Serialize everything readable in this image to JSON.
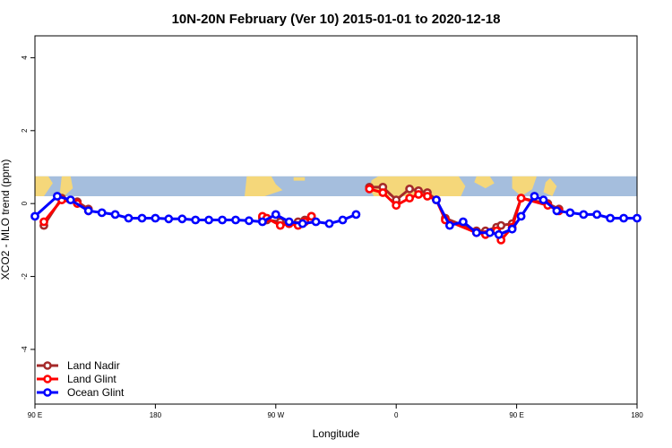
{
  "chart_data": {
    "type": "line",
    "title": "10N-20N February (Ver 10)   2015-01-01 to 2020-12-18",
    "xlabel": "Longitude",
    "ylabel": "XCO2 - MLO trend (ppm)",
    "xlim": [
      -90,
      180
    ],
    "ylim": [
      -5.5,
      4.6
    ],
    "xticks": [
      {
        "value": -90,
        "label": "90 E"
      },
      {
        "value": -36,
        "label": "180"
      },
      {
        "value": 18,
        "label": "90 W"
      },
      {
        "value": 72,
        "label": "0"
      },
      {
        "value": 126,
        "label": "90 E"
      },
      {
        "value": 180,
        "label": "180"
      }
    ],
    "yticks": [
      -4,
      -2,
      0,
      2,
      4
    ],
    "map_band": {
      "ymin": 0.2,
      "ymax": 0.75,
      "ocean_color": "#a5bedd",
      "land_color": "#f5d77a"
    },
    "grid": false,
    "legend_position": "bottom-left",
    "series": [
      {
        "name": "Land Nadir",
        "color": "#a52a2a",
        "x": [
          -86,
          -78,
          -71,
          -66,
          12,
          14,
          20,
          24,
          28,
          31,
          34,
          60,
          66,
          72,
          78,
          82,
          86,
          90,
          94,
          108,
          112,
          117,
          119,
          124,
          128,
          140,
          145
        ],
        "y": [
          -0.6,
          0.15,
          0.05,
          -0.15,
          -0.4,
          -0.45,
          -0.5,
          -0.55,
          -0.5,
          -0.45,
          -0.35,
          0.45,
          0.45,
          0.1,
          0.4,
          0.35,
          0.3,
          0.1,
          -0.4,
          -0.75,
          -0.75,
          -0.65,
          -0.6,
          -0.55,
          0.15,
          0.0,
          -0.15
        ]
      },
      {
        "name": "Land Glint",
        "color": "#ff0000",
        "x": [
          -86,
          -78,
          -71,
          -66,
          12,
          14,
          20,
          24,
          28,
          31,
          34,
          60,
          66,
          72,
          78,
          82,
          86,
          90,
          94,
          108,
          112,
          117,
          119,
          124,
          128,
          140,
          145
        ],
        "y": [
          -0.5,
          0.1,
          0.0,
          -0.2,
          -0.35,
          -0.4,
          -0.6,
          -0.55,
          -0.6,
          -0.5,
          -0.35,
          0.4,
          0.3,
          -0.05,
          0.15,
          0.25,
          0.2,
          0.1,
          -0.45,
          -0.8,
          -0.85,
          -0.75,
          -1.0,
          -0.65,
          0.15,
          -0.05,
          -0.2
        ]
      },
      {
        "name": "Ocean Glint",
        "color": "#0000ff",
        "x": [
          -90,
          -80,
          -74,
          -66,
          -60,
          -54,
          -48,
          -42,
          -36,
          -30,
          -24,
          -18,
          -12,
          -6,
          0,
          6,
          12,
          18,
          24,
          30,
          36,
          42,
          48,
          54,
          90,
          96,
          102,
          108,
          114,
          118,
          124,
          128,
          134,
          138,
          144,
          150,
          156,
          162,
          168,
          174,
          180
        ],
        "y": [
          -0.35,
          0.2,
          0.1,
          -0.2,
          -0.25,
          -0.3,
          -0.4,
          -0.4,
          -0.4,
          -0.42,
          -0.42,
          -0.45,
          -0.45,
          -0.45,
          -0.45,
          -0.47,
          -0.5,
          -0.3,
          -0.5,
          -0.55,
          -0.5,
          -0.55,
          -0.45,
          -0.3,
          0.1,
          -0.6,
          -0.5,
          -0.8,
          -0.8,
          -0.85,
          -0.7,
          -0.35,
          0.2,
          0.1,
          -0.2,
          -0.25,
          -0.3,
          -0.3,
          -0.4,
          -0.4,
          -0.4
        ]
      }
    ]
  }
}
